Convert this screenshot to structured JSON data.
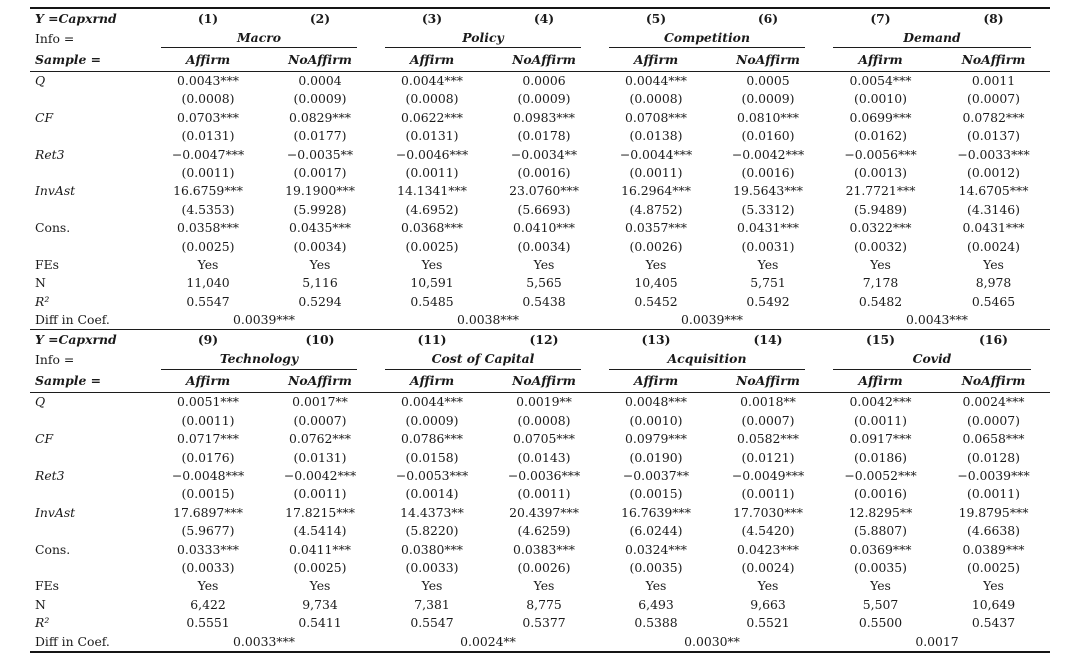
{
  "colors": {
    "background": "#ffffff",
    "text": "#1a1a1a",
    "rules": "#151515"
  },
  "table": {
    "panels": [
      {
        "y_label": "Y =Capxrnd",
        "info_label": "Info =",
        "sample_label": "Sample =",
        "col_numbers": [
          "(1)",
          "(2)",
          "(3)",
          "(4)",
          "(5)",
          "(6)",
          "(7)",
          "(8)"
        ],
        "sample_pair": [
          "Affirm",
          "NoAffirm"
        ],
        "groups": [
          {
            "name": "Macro",
            "diff": "0.0039***"
          },
          {
            "name": "Policy",
            "diff": "0.0038***"
          },
          {
            "name": "Competition",
            "diff": "0.0039***"
          },
          {
            "name": "Demand",
            "diff": "0.0043***"
          }
        ],
        "rows": [
          {
            "label": "Q",
            "italic": true,
            "cells": [
              {
                "coef": "0.0043***",
                "se": "(0.0008)"
              },
              {
                "coef": "0.0004",
                "se": "(0.0009)"
              },
              {
                "coef": "0.0044***",
                "se": "(0.0008)"
              },
              {
                "coef": "0.0006",
                "se": "(0.0009)"
              },
              {
                "coef": "0.0044***",
                "se": "(0.0008)"
              },
              {
                "coef": "0.0005",
                "se": "(0.0009)"
              },
              {
                "coef": "0.0054***",
                "se": "(0.0010)"
              },
              {
                "coef": "0.0011",
                "se": "(0.0007)"
              }
            ]
          },
          {
            "label": "CF",
            "italic": true,
            "cells": [
              {
                "coef": "0.0703***",
                "se": "(0.0131)"
              },
              {
                "coef": "0.0829***",
                "se": "(0.0177)"
              },
              {
                "coef": "0.0622***",
                "se": "(0.0131)"
              },
              {
                "coef": "0.0983***",
                "se": "(0.0178)"
              },
              {
                "coef": "0.0708***",
                "se": "(0.0138)"
              },
              {
                "coef": "0.0810***",
                "se": "(0.0160)"
              },
              {
                "coef": "0.0699***",
                "se": "(0.0162)"
              },
              {
                "coef": "0.0782***",
                "se": "(0.0137)"
              }
            ]
          },
          {
            "label": "Ret3",
            "italic": true,
            "cells": [
              {
                "coef": "−0.0047***",
                "se": "(0.0011)"
              },
              {
                "coef": "−0.0035**",
                "se": "(0.0017)"
              },
              {
                "coef": "−0.0046***",
                "se": "(0.0011)"
              },
              {
                "coef": "−0.0034**",
                "se": "(0.0016)"
              },
              {
                "coef": "−0.0044***",
                "se": "(0.0011)"
              },
              {
                "coef": "−0.0042***",
                "se": "(0.0016)"
              },
              {
                "coef": "−0.0056***",
                "se": "(0.0013)"
              },
              {
                "coef": "−0.0033***",
                "se": "(0.0012)"
              }
            ]
          },
          {
            "label": "InvAst",
            "italic": true,
            "cells": [
              {
                "coef": "16.6759***",
                "se": "(4.5353)"
              },
              {
                "coef": "19.1900***",
                "se": "(5.9928)"
              },
              {
                "coef": "14.1341***",
                "se": "(4.6952)"
              },
              {
                "coef": "23.0760***",
                "se": "(5.6693)"
              },
              {
                "coef": "16.2964***",
                "se": "(4.8752)"
              },
              {
                "coef": "19.5643***",
                "se": "(5.3312)"
              },
              {
                "coef": "21.7721***",
                "se": "(5.9489)"
              },
              {
                "coef": "14.6705***",
                "se": "(4.3146)"
              }
            ]
          },
          {
            "label": "Cons.",
            "italic": false,
            "cells": [
              {
                "coef": "0.0358***",
                "se": "(0.0025)"
              },
              {
                "coef": "0.0435***",
                "se": "(0.0034)"
              },
              {
                "coef": "0.0368***",
                "se": "(0.0025)"
              },
              {
                "coef": "0.0410***",
                "se": "(0.0034)"
              },
              {
                "coef": "0.0357***",
                "se": "(0.0026)"
              },
              {
                "coef": "0.0431***",
                "se": "(0.0031)"
              },
              {
                "coef": "0.0322***",
                "se": "(0.0032)"
              },
              {
                "coef": "0.0431***",
                "se": "(0.0024)"
              }
            ]
          }
        ],
        "fes": {
          "label": "FEs",
          "italic": false,
          "values": [
            "Yes",
            "Yes",
            "Yes",
            "Yes",
            "Yes",
            "Yes",
            "Yes",
            "Yes"
          ]
        },
        "n": {
          "label": "N",
          "italic": false,
          "values": [
            "11,040",
            "5,116",
            "10,591",
            "5,565",
            "10,405",
            "5,751",
            "7,178",
            "8,978"
          ]
        },
        "r2": {
          "label": "R²",
          "italic": true,
          "values": [
            "0.5547",
            "0.5294",
            "0.5485",
            "0.5438",
            "0.5452",
            "0.5492",
            "0.5482",
            "0.5465"
          ]
        },
        "diff_label": "Diff in Coef."
      },
      {
        "y_label": "Y =Capxrnd",
        "info_label": "Info =",
        "sample_label": "Sample =",
        "col_numbers": [
          "(9)",
          "(10)",
          "(11)",
          "(12)",
          "(13)",
          "(14)",
          "(15)",
          "(16)"
        ],
        "sample_pair": [
          "Affirm",
          "NoAffirm"
        ],
        "groups": [
          {
            "name": "Technology",
            "diff": "0.0033***"
          },
          {
            "name": "Cost of Capital",
            "diff": "0.0024**"
          },
          {
            "name": "Acquisition",
            "diff": "0.0030**"
          },
          {
            "name": "Covid",
            "diff": "0.0017"
          }
        ],
        "rows": [
          {
            "label": "Q",
            "italic": true,
            "cells": [
              {
                "coef": "0.0051***",
                "se": "(0.0011)"
              },
              {
                "coef": "0.0017**",
                "se": "(0.0007)"
              },
              {
                "coef": "0.0044***",
                "se": "(0.0009)"
              },
              {
                "coef": "0.0019**",
                "se": "(0.0008)"
              },
              {
                "coef": "0.0048***",
                "se": "(0.0010)"
              },
              {
                "coef": "0.0018**",
                "se": "(0.0007)"
              },
              {
                "coef": "0.0042***",
                "se": "(0.0011)"
              },
              {
                "coef": "0.0024***",
                "se": "(0.0007)"
              }
            ]
          },
          {
            "label": "CF",
            "italic": true,
            "cells": [
              {
                "coef": "0.0717***",
                "se": "(0.0176)"
              },
              {
                "coef": "0.0762***",
                "se": "(0.0131)"
              },
              {
                "coef": "0.0786***",
                "se": "(0.0158)"
              },
              {
                "coef": "0.0705***",
                "se": "(0.0143)"
              },
              {
                "coef": "0.0979***",
                "se": "(0.0190)"
              },
              {
                "coef": "0.0582***",
                "se": "(0.0121)"
              },
              {
                "coef": "0.0917***",
                "se": "(0.0186)"
              },
              {
                "coef": "0.0658***",
                "se": "(0.0128)"
              }
            ]
          },
          {
            "label": "Ret3",
            "italic": true,
            "cells": [
              {
                "coef": "−0.0048***",
                "se": "(0.0015)"
              },
              {
                "coef": "−0.0042***",
                "se": "(0.0011)"
              },
              {
                "coef": "−0.0053***",
                "se": "(0.0014)"
              },
              {
                "coef": "−0.0036***",
                "se": "(0.0011)"
              },
              {
                "coef": "−0.0037**",
                "se": "(0.0015)"
              },
              {
                "coef": "−0.0049***",
                "se": "(0.0011)"
              },
              {
                "coef": "−0.0052***",
                "se": "(0.0016)"
              },
              {
                "coef": "−0.0039***",
                "se": "(0.0011)"
              }
            ]
          },
          {
            "label": "InvAst",
            "italic": true,
            "cells": [
              {
                "coef": "17.6897***",
                "se": "(5.9677)"
              },
              {
                "coef": "17.8215***",
                "se": "(4.5414)"
              },
              {
                "coef": "14.4373**",
                "se": "(5.8220)"
              },
              {
                "coef": "20.4397***",
                "se": "(4.6259)"
              },
              {
                "coef": "16.7639***",
                "se": "(6.0244)"
              },
              {
                "coef": "17.7030***",
                "se": "(4.5420)"
              },
              {
                "coef": "12.8295**",
                "se": "(5.8807)"
              },
              {
                "coef": "19.8795***",
                "se": "(4.6638)"
              }
            ]
          },
          {
            "label": "Cons.",
            "italic": false,
            "cells": [
              {
                "coef": "0.0333***",
                "se": "(0.0033)"
              },
              {
                "coef": "0.0411***",
                "se": "(0.0025)"
              },
              {
                "coef": "0.0380***",
                "se": "(0.0033)"
              },
              {
                "coef": "0.0383***",
                "se": "(0.0026)"
              },
              {
                "coef": "0.0324***",
                "se": "(0.0035)"
              },
              {
                "coef": "0.0423***",
                "se": "(0.0024)"
              },
              {
                "coef": "0.0369***",
                "se": "(0.0035)"
              },
              {
                "coef": "0.0389***",
                "se": "(0.0025)"
              }
            ]
          }
        ],
        "fes": {
          "label": "FEs",
          "italic": false,
          "values": [
            "Yes",
            "Yes",
            "Yes",
            "Yes",
            "Yes",
            "Yes",
            "Yes",
            "Yes"
          ]
        },
        "n": {
          "label": "N",
          "italic": false,
          "values": [
            "6,422",
            "9,734",
            "7,381",
            "8,775",
            "6,493",
            "9,663",
            "5,507",
            "10,649"
          ]
        },
        "r2": {
          "label": "R²",
          "italic": true,
          "values": [
            "0.5551",
            "0.5411",
            "0.5547",
            "0.5377",
            "0.5388",
            "0.5521",
            "0.5500",
            "0.5437"
          ]
        },
        "diff_label": "Diff in Coef."
      }
    ]
  }
}
